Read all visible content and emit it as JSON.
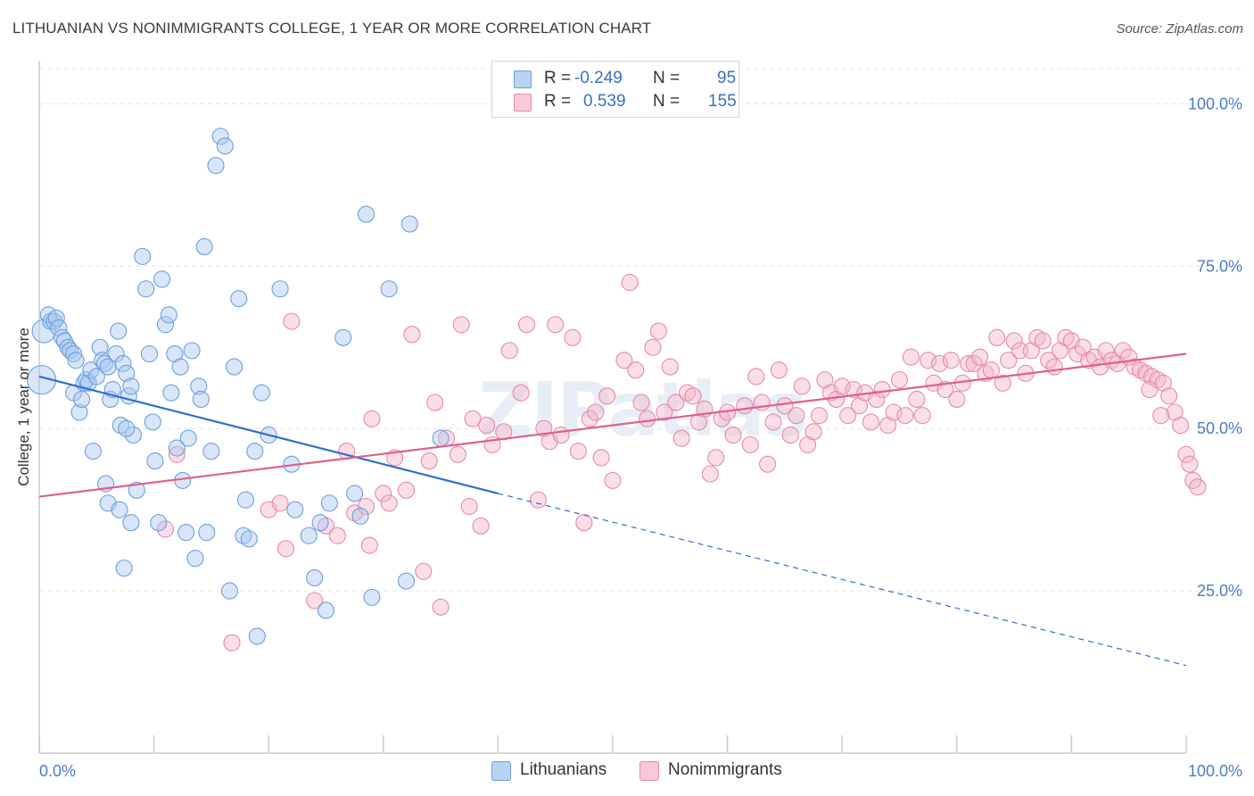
{
  "header": {
    "title": "LITHUANIAN VS NONIMMIGRANTS COLLEGE, 1 YEAR OR MORE CORRELATION CHART",
    "source": "Source: ZipAtlas.com"
  },
  "legend": {
    "rows": [
      {
        "r_label": "R =",
        "r_value": "-0.249",
        "n_label": "N =",
        "n_value": "95"
      },
      {
        "r_label": "R =",
        "r_value": "0.539",
        "n_label": "N =",
        "n_value": "155"
      }
    ],
    "series_labels": [
      "Lithuanians",
      "Nonimmigrants"
    ]
  },
  "colors": {
    "blue_fill": "#a8c8f0",
    "blue_stroke": "#6b9fdc",
    "blue_line": "#2f6fcc",
    "pink_fill": "#f5b5c9",
    "pink_stroke": "#e58aa8",
    "pink_line": "#e0608a",
    "tick_text": "#4a7cc8",
    "grid": "#e3e3e3"
  },
  "chart_data": {
    "type": "scatter",
    "title": "LITHUANIAN VS NONIMMIGRANTS COLLEGE, 1 YEAR OR MORE CORRELATION CHART",
    "xlabel": "",
    "ylabel": "College, 1 year or more",
    "xlim": [
      0,
      100
    ],
    "ylim": [
      0,
      105
    ],
    "x_tick_labels": [
      "0.0%",
      "100.0%"
    ],
    "y_tick_labels": [
      "25.0%",
      "50.0%",
      "75.0%",
      "100.0%"
    ],
    "y_ticks": [
      25,
      50,
      75,
      100
    ],
    "grid": "horizontal dashed",
    "legend_position": "top-center",
    "watermark": "ZIPatlas",
    "series": [
      {
        "name": "Lithuanians",
        "color": "#a8c8f0",
        "trend": {
          "x": [
            0,
            40
          ],
          "y": [
            58.0,
            40.0
          ],
          "dashed_extension_to": [
            100,
            13.5
          ]
        },
        "points": [
          [
            0.2,
            57.5
          ],
          [
            0.4,
            65.0
          ],
          [
            0.8,
            67.5
          ],
          [
            1.0,
            66.5
          ],
          [
            1.3,
            66.5
          ],
          [
            1.5,
            67.0
          ],
          [
            1.7,
            65.5
          ],
          [
            2.0,
            64.0
          ],
          [
            2.2,
            63.5
          ],
          [
            2.5,
            62.5
          ],
          [
            2.7,
            62.0
          ],
          [
            3.0,
            61.5
          ],
          [
            3.2,
            60.5
          ],
          [
            3.0,
            55.5
          ],
          [
            3.5,
            52.5
          ],
          [
            3.7,
            54.5
          ],
          [
            3.9,
            57.0
          ],
          [
            4.1,
            57.5
          ],
          [
            4.3,
            57.0
          ],
          [
            4.5,
            59.0
          ],
          [
            4.7,
            46.5
          ],
          [
            5.0,
            58.0
          ],
          [
            5.3,
            62.5
          ],
          [
            5.5,
            60.5
          ],
          [
            5.7,
            60.0
          ],
          [
            6.0,
            59.5
          ],
          [
            6.2,
            54.5
          ],
          [
            6.4,
            56.0
          ],
          [
            6.7,
            61.5
          ],
          [
            6.9,
            65.0
          ],
          [
            7.1,
            50.5
          ],
          [
            7.3,
            60.0
          ],
          [
            7.6,
            58.5
          ],
          [
            7.8,
            55.0
          ],
          [
            8.0,
            56.5
          ],
          [
            8.2,
            49.0
          ],
          [
            5.8,
            41.5
          ],
          [
            6.0,
            38.5
          ],
          [
            7.0,
            37.5
          ],
          [
            7.4,
            28.5
          ],
          [
            7.6,
            50.0
          ],
          [
            8.0,
            35.5
          ],
          [
            8.5,
            40.5
          ],
          [
            9.0,
            76.5
          ],
          [
            9.3,
            71.5
          ],
          [
            9.6,
            61.5
          ],
          [
            9.9,
            51.0
          ],
          [
            10.1,
            45.0
          ],
          [
            10.4,
            35.5
          ],
          [
            10.7,
            73.0
          ],
          [
            11.0,
            66.0
          ],
          [
            11.3,
            67.5
          ],
          [
            11.5,
            55.5
          ],
          [
            11.8,
            61.5
          ],
          [
            12.0,
            47.0
          ],
          [
            12.3,
            59.5
          ],
          [
            12.5,
            42.0
          ],
          [
            12.8,
            34.0
          ],
          [
            13.0,
            48.5
          ],
          [
            13.3,
            62.0
          ],
          [
            13.6,
            30.0
          ],
          [
            13.9,
            56.5
          ],
          [
            14.1,
            54.5
          ],
          [
            14.4,
            78.0
          ],
          [
            14.6,
            34.0
          ],
          [
            15.0,
            46.5
          ],
          [
            15.4,
            90.5
          ],
          [
            15.8,
            95.0
          ],
          [
            16.2,
            93.5
          ],
          [
            16.6,
            25.0
          ],
          [
            17.0,
            59.5
          ],
          [
            17.4,
            70.0
          ],
          [
            17.8,
            33.5
          ],
          [
            18.0,
            39.0
          ],
          [
            18.3,
            33.0
          ],
          [
            18.8,
            46.5
          ],
          [
            19.0,
            18.0
          ],
          [
            19.4,
            55.5
          ],
          [
            20.0,
            49.0
          ],
          [
            21.0,
            71.5
          ],
          [
            22.0,
            44.5
          ],
          [
            22.3,
            37.5
          ],
          [
            23.5,
            33.5
          ],
          [
            24.0,
            27.0
          ],
          [
            24.5,
            35.5
          ],
          [
            25.0,
            22.0
          ],
          [
            25.3,
            38.5
          ],
          [
            26.5,
            64.0
          ],
          [
            27.5,
            40.0
          ],
          [
            28.0,
            36.5
          ],
          [
            28.5,
            83.0
          ],
          [
            29.0,
            24.0
          ],
          [
            30.5,
            71.5
          ],
          [
            32.0,
            26.5
          ],
          [
            32.3,
            81.5
          ],
          [
            35.0,
            48.5
          ]
        ]
      },
      {
        "name": "Nonimmigrants",
        "color": "#f5b5c9",
        "trend": {
          "x": [
            0,
            100
          ],
          "y": [
            39.5,
            61.5
          ]
        },
        "points": [
          [
            11.0,
            34.5
          ],
          [
            12.0,
            46.0
          ],
          [
            16.8,
            17.0
          ],
          [
            20.0,
            37.5
          ],
          [
            21.0,
            38.5
          ],
          [
            21.5,
            31.5
          ],
          [
            22.0,
            66.5
          ],
          [
            24.0,
            23.5
          ],
          [
            25.0,
            35.0
          ],
          [
            26.0,
            33.5
          ],
          [
            26.8,
            46.5
          ],
          [
            27.5,
            37.0
          ],
          [
            28.5,
            38.0
          ],
          [
            28.8,
            32.0
          ],
          [
            29.0,
            51.5
          ],
          [
            30.0,
            40.0
          ],
          [
            30.5,
            38.5
          ],
          [
            31.0,
            45.5
          ],
          [
            32.0,
            40.5
          ],
          [
            32.5,
            64.5
          ],
          [
            33.5,
            28.0
          ],
          [
            34.0,
            45.0
          ],
          [
            34.5,
            54.0
          ],
          [
            35.0,
            22.5
          ],
          [
            35.5,
            48.5
          ],
          [
            36.5,
            46.0
          ],
          [
            36.8,
            66.0
          ],
          [
            37.5,
            38.0
          ],
          [
            37.8,
            51.5
          ],
          [
            38.5,
            35.0
          ],
          [
            39.0,
            50.5
          ],
          [
            39.5,
            47.5
          ],
          [
            40.5,
            49.5
          ],
          [
            41.0,
            62.0
          ],
          [
            42.0,
            55.5
          ],
          [
            42.5,
            66.0
          ],
          [
            43.5,
            39.0
          ],
          [
            44.0,
            50.0
          ],
          [
            44.5,
            48.0
          ],
          [
            45.0,
            66.0
          ],
          [
            45.5,
            49.0
          ],
          [
            46.5,
            64.0
          ],
          [
            47.0,
            46.5
          ],
          [
            47.5,
            35.5
          ],
          [
            48.0,
            51.5
          ],
          [
            48.5,
            52.5
          ],
          [
            49.0,
            45.5
          ],
          [
            49.5,
            55.0
          ],
          [
            50.0,
            42.0
          ],
          [
            51.0,
            60.5
          ],
          [
            51.5,
            72.5
          ],
          [
            52.0,
            59.0
          ],
          [
            52.5,
            54.0
          ],
          [
            53.0,
            51.5
          ],
          [
            53.5,
            62.5
          ],
          [
            54.0,
            65.0
          ],
          [
            54.5,
            52.5
          ],
          [
            55.0,
            59.5
          ],
          [
            55.5,
            54.0
          ],
          [
            56.0,
            48.5
          ],
          [
            56.5,
            55.5
          ],
          [
            57.0,
            55.0
          ],
          [
            57.5,
            51.0
          ],
          [
            58.0,
            53.0
          ],
          [
            58.5,
            43.0
          ],
          [
            59.0,
            45.5
          ],
          [
            59.5,
            51.5
          ],
          [
            60.0,
            52.5
          ],
          [
            60.5,
            49.0
          ],
          [
            61.5,
            53.5
          ],
          [
            62.0,
            47.5
          ],
          [
            62.5,
            58.0
          ],
          [
            63.0,
            54.0
          ],
          [
            63.5,
            44.5
          ],
          [
            64.0,
            51.0
          ],
          [
            64.5,
            59.0
          ],
          [
            65.0,
            53.5
          ],
          [
            65.5,
            49.0
          ],
          [
            66.0,
            52.0
          ],
          [
            66.5,
            56.5
          ],
          [
            67.0,
            47.5
          ],
          [
            67.5,
            49.5
          ],
          [
            68.0,
            52.0
          ],
          [
            68.5,
            57.5
          ],
          [
            69.0,
            55.5
          ],
          [
            69.5,
            54.5
          ],
          [
            70.0,
            56.5
          ],
          [
            70.5,
            52.0
          ],
          [
            71.0,
            56.0
          ],
          [
            71.5,
            53.5
          ],
          [
            72.0,
            55.5
          ],
          [
            72.5,
            51.0
          ],
          [
            73.0,
            54.5
          ],
          [
            73.5,
            56.0
          ],
          [
            74.0,
            50.5
          ],
          [
            74.5,
            52.5
          ],
          [
            75.0,
            57.5
          ],
          [
            75.5,
            52.0
          ],
          [
            76.0,
            61.0
          ],
          [
            76.5,
            54.5
          ],
          [
            77.0,
            52.0
          ],
          [
            77.5,
            60.5
          ],
          [
            78.0,
            57.0
          ],
          [
            78.5,
            60.0
          ],
          [
            79.0,
            56.0
          ],
          [
            79.5,
            60.5
          ],
          [
            80.0,
            54.5
          ],
          [
            80.5,
            57.0
          ],
          [
            81.0,
            60.0
          ],
          [
            81.5,
            60.0
          ],
          [
            82.0,
            61.0
          ],
          [
            82.5,
            58.5
          ],
          [
            83.0,
            59.0
          ],
          [
            83.5,
            64.0
          ],
          [
            84.0,
            57.0
          ],
          [
            84.5,
            60.5
          ],
          [
            85.0,
            63.5
          ],
          [
            85.5,
            62.0
          ],
          [
            86.0,
            58.5
          ],
          [
            86.5,
            62.0
          ],
          [
            87.0,
            64.0
          ],
          [
            87.5,
            63.5
          ],
          [
            88.0,
            60.5
          ],
          [
            88.5,
            59.5
          ],
          [
            89.0,
            62.0
          ],
          [
            89.5,
            64.0
          ],
          [
            90.0,
            63.5
          ],
          [
            90.5,
            61.5
          ],
          [
            91.0,
            62.5
          ],
          [
            91.5,
            60.5
          ],
          [
            92.0,
            61.0
          ],
          [
            92.5,
            59.5
          ],
          [
            93.0,
            62.0
          ],
          [
            93.5,
            60.5
          ],
          [
            94.0,
            60.0
          ],
          [
            94.5,
            62.0
          ],
          [
            95.0,
            61.0
          ],
          [
            95.5,
            59.5
          ],
          [
            96.0,
            59.0
          ],
          [
            96.5,
            58.5
          ],
          [
            97.0,
            58.0
          ],
          [
            97.5,
            57.5
          ],
          [
            98.0,
            57.0
          ],
          [
            98.5,
            55.0
          ],
          [
            99.0,
            52.5
          ],
          [
            99.5,
            50.5
          ],
          [
            100.0,
            46.0
          ],
          [
            100.3,
            44.5
          ],
          [
            100.6,
            42.0
          ],
          [
            101.0,
            41.0
          ],
          [
            96.8,
            56.0
          ],
          [
            97.8,
            52.0
          ]
        ]
      }
    ]
  },
  "axis_label": "College, 1 year or more",
  "watermark": "ZIPatlas"
}
